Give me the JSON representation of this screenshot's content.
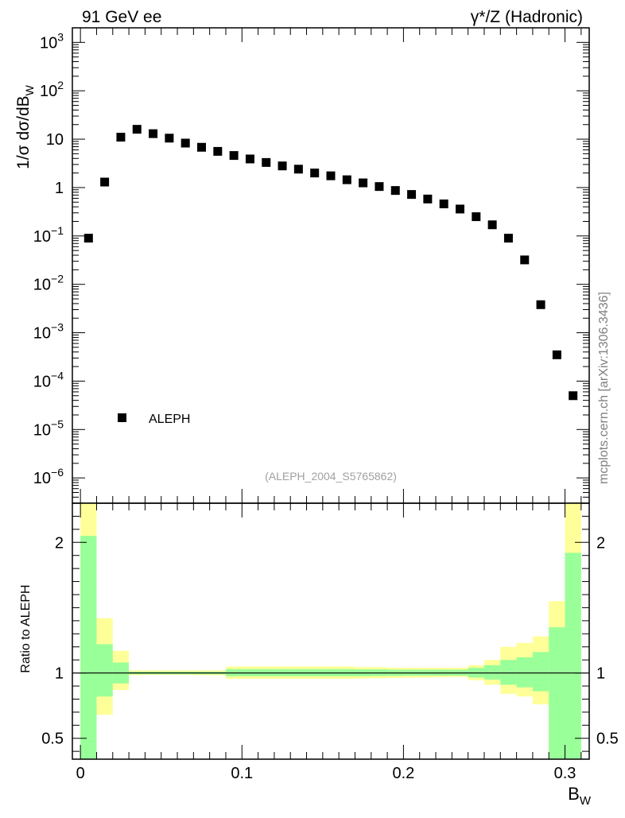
{
  "header": {
    "left_title": "91 GeV ee",
    "right_title": "γ*/Z (Hadronic)"
  },
  "side_label": "mcplots.cern.ch [arXiv:1306.3436]",
  "chart_data": [
    {
      "type": "scatter",
      "panel": "main",
      "ylabel": "1/σ dσ/dB",
      "ylabel_sub": "W",
      "yscale": "log",
      "xlim": [
        -0.005,
        0.315
      ],
      "ylim": [
        3e-07,
        2000
      ],
      "y_ticks": [
        {
          "value": 1e-06,
          "base": "10",
          "exp": "−6"
        },
        {
          "value": 1e-05,
          "base": "10",
          "exp": "−5"
        },
        {
          "value": 0.0001,
          "base": "10",
          "exp": "−4"
        },
        {
          "value": 0.001,
          "base": "10",
          "exp": "−3"
        },
        {
          "value": 0.01,
          "base": "10",
          "exp": "−2"
        },
        {
          "value": 0.1,
          "base": "10",
          "exp": "−1"
        },
        {
          "value": 1,
          "base": "1",
          "exp": ""
        },
        {
          "value": 10,
          "base": "10",
          "exp": ""
        },
        {
          "value": 100,
          "base": "10",
          "exp": "2"
        },
        {
          "value": 1000,
          "base": "10",
          "exp": "3"
        }
      ],
      "series": [
        {
          "name": "ALEPH",
          "color": "#000000",
          "marker": "square",
          "x": [
            0.005,
            0.015,
            0.025,
            0.035,
            0.045,
            0.055,
            0.065,
            0.075,
            0.085,
            0.095,
            0.105,
            0.115,
            0.125,
            0.135,
            0.145,
            0.155,
            0.165,
            0.175,
            0.185,
            0.195,
            0.205,
            0.215,
            0.225,
            0.235,
            0.245,
            0.255,
            0.265,
            0.275,
            0.285,
            0.295,
            0.305
          ],
          "y": [
            0.09,
            1.3,
            11,
            16,
            13,
            10.5,
            8.3,
            6.8,
            5.6,
            4.6,
            3.9,
            3.3,
            2.8,
            2.4,
            2.0,
            1.75,
            1.45,
            1.25,
            1.05,
            0.87,
            0.72,
            0.58,
            0.46,
            0.36,
            0.25,
            0.17,
            0.09,
            0.032,
            0.0038,
            0.00035,
            5e-05
          ]
        }
      ],
      "legend": {
        "position": "bottom-left",
        "entries": [
          "ALEPH"
        ]
      },
      "annotation": "(ALEPH_2004_S5765862)"
    },
    {
      "type": "area",
      "panel": "ratio",
      "ylabel": "Ratio to ALEPH",
      "xlabel": "B",
      "xlabel_sub": "W",
      "xlim": [
        -0.005,
        0.315
      ],
      "ylim": [
        0.34,
        2.3
      ],
      "x_ticks": [
        "0",
        "0.1",
        "0.2",
        "0.3"
      ],
      "y_ticks": [
        "0.5",
        "1",
        "2"
      ],
      "y_tick_values": [
        0.5,
        1,
        2
      ],
      "reference_line": 1,
      "bin_edges": [
        0.0,
        0.01,
        0.02,
        0.03,
        0.04,
        0.05,
        0.06,
        0.07,
        0.08,
        0.09,
        0.1,
        0.11,
        0.12,
        0.13,
        0.14,
        0.15,
        0.16,
        0.17,
        0.18,
        0.19,
        0.2,
        0.21,
        0.22,
        0.23,
        0.24,
        0.25,
        0.26,
        0.27,
        0.28,
        0.29,
        0.3,
        0.31
      ],
      "bands": [
        {
          "name": "total uncertainty",
          "color": "#ffff99",
          "low": [
            0.3,
            0.68,
            0.87,
            0.983,
            0.985,
            0.985,
            0.985,
            0.983,
            0.982,
            0.955,
            0.955,
            0.955,
            0.955,
            0.955,
            0.955,
            0.955,
            0.955,
            0.958,
            0.96,
            0.962,
            0.964,
            0.966,
            0.968,
            0.97,
            0.945,
            0.91,
            0.84,
            0.82,
            0.76,
            0.3,
            0.3
          ],
          "high": [
            2.5,
            1.42,
            1.17,
            1.02,
            1.02,
            1.02,
            1.02,
            1.02,
            1.02,
            1.05,
            1.05,
            1.05,
            1.05,
            1.05,
            1.05,
            1.05,
            1.05,
            1.045,
            1.045,
            1.04,
            1.04,
            1.04,
            1.04,
            1.04,
            1.06,
            1.1,
            1.2,
            1.23,
            1.28,
            1.55,
            2.5
          ]
        },
        {
          "name": "statistical uncertainty",
          "color": "#99ff99",
          "low": [
            0.3,
            0.82,
            0.92,
            0.99,
            0.99,
            0.99,
            0.99,
            0.99,
            0.99,
            0.975,
            0.975,
            0.975,
            0.975,
            0.975,
            0.975,
            0.975,
            0.975,
            0.975,
            0.977,
            0.978,
            0.98,
            0.98,
            0.98,
            0.98,
            0.965,
            0.95,
            0.91,
            0.89,
            0.86,
            0.3,
            0.3
          ],
          "high": [
            2.05,
            1.22,
            1.08,
            1.01,
            1.01,
            1.01,
            1.01,
            1.01,
            1.01,
            1.03,
            1.03,
            1.03,
            1.03,
            1.03,
            1.03,
            1.03,
            1.03,
            1.028,
            1.028,
            1.025,
            1.025,
            1.025,
            1.025,
            1.025,
            1.04,
            1.06,
            1.1,
            1.12,
            1.16,
            1.35,
            1.92
          ]
        }
      ]
    }
  ]
}
